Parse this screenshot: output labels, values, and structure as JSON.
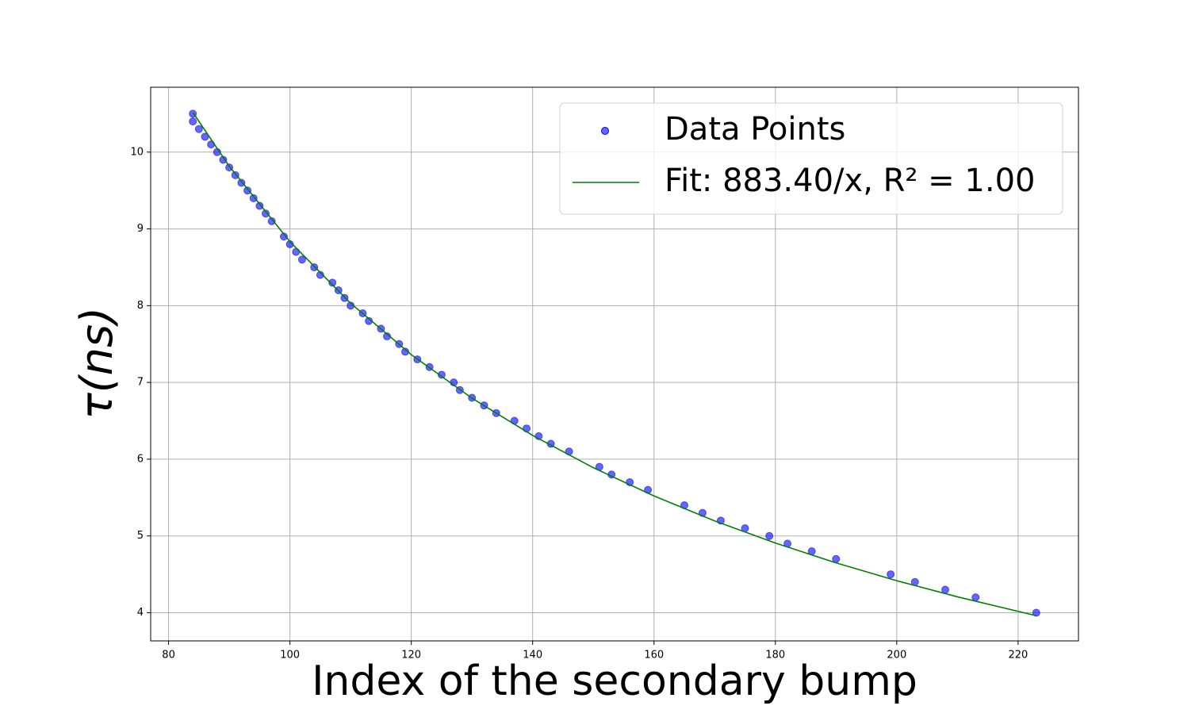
{
  "chart_data": {
    "type": "scatter",
    "xlabel": "Index of the secondary bump",
    "ylabel": "τ(ns)",
    "xlim": [
      77.05,
      229.95
    ],
    "ylim": [
      3.633,
      10.845
    ],
    "xticks": [
      80,
      100,
      120,
      140,
      160,
      180,
      200,
      220
    ],
    "yticks": [
      4,
      5,
      6,
      7,
      8,
      9,
      10
    ],
    "grid": true,
    "legend": "upper right",
    "series": [
      {
        "name": "Data Points",
        "kind": "scatter",
        "color": "#0000ff",
        "x": [
          84,
          84,
          85,
          86,
          87,
          88,
          89,
          90,
          91,
          92,
          93,
          94,
          95,
          96,
          97,
          99,
          100,
          101,
          102,
          104,
          105,
          107,
          108,
          109,
          110,
          112,
          113,
          115,
          116,
          118,
          119,
          121,
          123,
          125,
          127,
          128,
          130,
          132,
          134,
          137,
          139,
          141,
          143,
          146,
          151,
          153,
          156,
          159,
          165,
          168,
          171,
          175,
          179,
          182,
          186,
          190,
          199,
          203,
          208,
          213,
          223
        ],
        "values": [
          10.5,
          10.4,
          10.3,
          10.2,
          10.1,
          10.0,
          9.9,
          9.8,
          9.7,
          9.6,
          9.5,
          9.4,
          9.3,
          9.2,
          9.1,
          8.9,
          8.8,
          8.7,
          8.6,
          8.5,
          8.4,
          8.3,
          8.2,
          8.1,
          8.0,
          7.9,
          7.8,
          7.7,
          7.6,
          7.5,
          7.4,
          7.3,
          7.2,
          7.1,
          7.0,
          6.9,
          6.8,
          6.7,
          6.6,
          6.5,
          6.4,
          6.3,
          6.2,
          6.1,
          5.9,
          5.8,
          5.7,
          5.6,
          5.4,
          5.3,
          5.2,
          5.1,
          5.0,
          4.9,
          4.8,
          4.7,
          4.5,
          4.4,
          4.3,
          4.2,
          4.0
        ]
      },
      {
        "name": "Fit: 883.40/x, R² = 1.00",
        "kind": "line",
        "color": "#008000",
        "x": [
          84,
          90,
          100,
          110,
          120,
          130,
          140,
          150,
          160,
          170,
          180,
          190,
          200,
          210,
          223
        ],
        "values": [
          10.517,
          9.816,
          8.834,
          8.031,
          7.362,
          6.795,
          6.31,
          5.889,
          5.521,
          5.196,
          4.908,
          4.649,
          4.417,
          4.207,
          3.961
        ]
      }
    ]
  }
}
